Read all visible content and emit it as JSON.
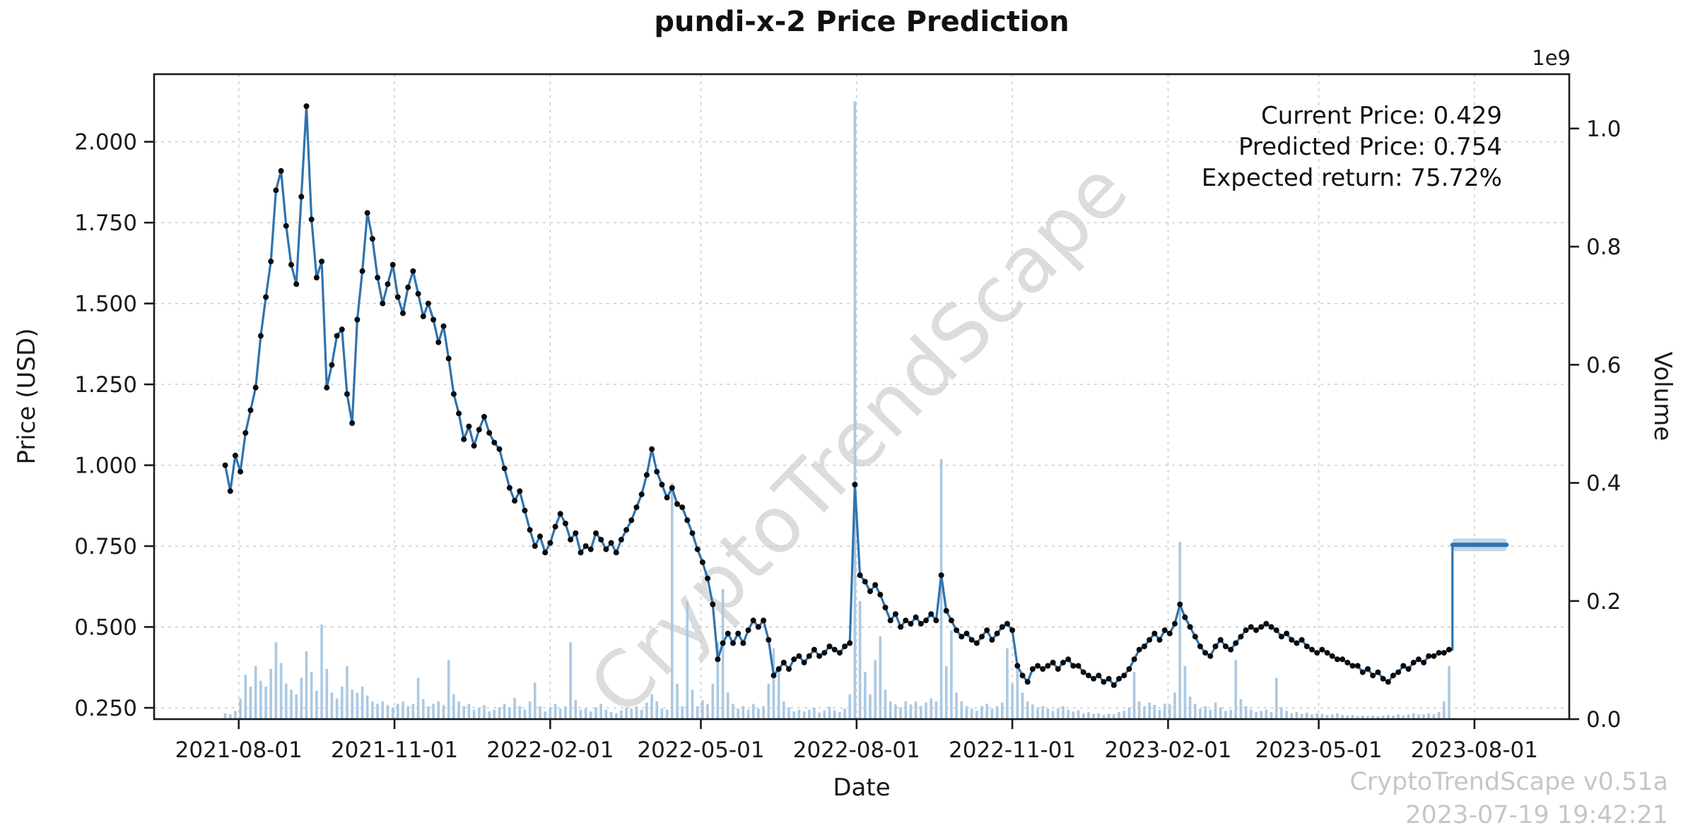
{
  "chart_data": {
    "type": "line",
    "title": "pundi-x-2 Price Prediction",
    "xlabel": "Date",
    "watermark": "CryptoTrendScape",
    "footer": {
      "line1": "CryptoTrendScape v0.51a",
      "line2": "2023-07-19 19:42:21"
    },
    "annotation": {
      "lines": [
        "Current Price: 0.429",
        "Predicted Price: 0.754",
        "Expected return: 75.72%"
      ]
    },
    "x_axis": {
      "start": "2021-06-12",
      "end": "2023-09-26",
      "ticks": [
        "2021-08-01",
        "2021-11-01",
        "2022-02-01",
        "2022-05-01",
        "2022-08-01",
        "2022-11-01",
        "2023-02-01",
        "2023-05-01",
        "2023-08-01"
      ]
    },
    "left_axis": {
      "label": "Price (USD)",
      "ticks": [
        "0.250",
        "0.500",
        "0.750",
        "1.000",
        "1.250",
        "1.500",
        "1.750",
        "2.000"
      ],
      "lim": [
        0.215,
        2.209
      ]
    },
    "right_axis": {
      "label": "Volume",
      "offset_label": "1e9",
      "ticks": [
        "0.0",
        "0.2",
        "0.4",
        "0.6",
        "0.8",
        "1.0"
      ],
      "lim": [
        0,
        1.092
      ]
    },
    "colors": {
      "line": "#2f73ad",
      "marker": "#0a0a0a",
      "volume": "#aac9e3",
      "band": "#aac9e3",
      "grid": "#c9c9c9",
      "axis": "#1a1a1a",
      "text": "#1a1a1a"
    },
    "legend": "none",
    "grid": "dashed",
    "series_columns": [
      "date",
      "price_usd",
      "volume_1e9"
    ],
    "series": [
      [
        "2021-07-24",
        1.0,
        0.01
      ],
      [
        "2021-07-27",
        0.92,
        0.008
      ],
      [
        "2021-07-30",
        1.03,
        0.014
      ],
      [
        "2021-08-02",
        0.98,
        0.035
      ],
      [
        "2021-08-05",
        1.1,
        0.075
      ],
      [
        "2021-08-08",
        1.17,
        0.055
      ],
      [
        "2021-08-11",
        1.24,
        0.09
      ],
      [
        "2021-08-14",
        1.4,
        0.065
      ],
      [
        "2021-08-17",
        1.52,
        0.055
      ],
      [
        "2021-08-20",
        1.63,
        0.085
      ],
      [
        "2021-08-23",
        1.85,
        0.13
      ],
      [
        "2021-08-26",
        1.91,
        0.095
      ],
      [
        "2021-08-29",
        1.74,
        0.06
      ],
      [
        "2021-09-01",
        1.62,
        0.05
      ],
      [
        "2021-09-04",
        1.56,
        0.042
      ],
      [
        "2021-09-07",
        1.83,
        0.07
      ],
      [
        "2021-09-10",
        2.11,
        0.115
      ],
      [
        "2021-09-13",
        1.76,
        0.08
      ],
      [
        "2021-09-16",
        1.58,
        0.048
      ],
      [
        "2021-09-19",
        1.63,
        0.16
      ],
      [
        "2021-09-22",
        1.24,
        0.085
      ],
      [
        "2021-09-25",
        1.31,
        0.045
      ],
      [
        "2021-09-28",
        1.4,
        0.035
      ],
      [
        "2021-10-01",
        1.42,
        0.055
      ],
      [
        "2021-10-04",
        1.22,
        0.09
      ],
      [
        "2021-10-07",
        1.13,
        0.05
      ],
      [
        "2021-10-10",
        1.45,
        0.045
      ],
      [
        "2021-10-13",
        1.6,
        0.055
      ],
      [
        "2021-10-16",
        1.78,
        0.04
      ],
      [
        "2021-10-19",
        1.7,
        0.03
      ],
      [
        "2021-10-22",
        1.58,
        0.026
      ],
      [
        "2021-10-25",
        1.5,
        0.03
      ],
      [
        "2021-10-28",
        1.56,
        0.024
      ],
      [
        "2021-10-31",
        1.62,
        0.02
      ],
      [
        "2021-11-03",
        1.52,
        0.026
      ],
      [
        "2021-11-06",
        1.47,
        0.03
      ],
      [
        "2021-11-09",
        1.55,
        0.022
      ],
      [
        "2021-11-12",
        1.6,
        0.026
      ],
      [
        "2021-11-15",
        1.53,
        0.07
      ],
      [
        "2021-11-18",
        1.46,
        0.034
      ],
      [
        "2021-11-21",
        1.5,
        0.022
      ],
      [
        "2021-11-24",
        1.45,
        0.026
      ],
      [
        "2021-11-27",
        1.38,
        0.03
      ],
      [
        "2021-11-30",
        1.43,
        0.024
      ],
      [
        "2021-12-03",
        1.33,
        0.1
      ],
      [
        "2021-12-06",
        1.22,
        0.042
      ],
      [
        "2021-12-09",
        1.16,
        0.03
      ],
      [
        "2021-12-12",
        1.08,
        0.022
      ],
      [
        "2021-12-15",
        1.12,
        0.026
      ],
      [
        "2021-12-18",
        1.06,
        0.016
      ],
      [
        "2021-12-21",
        1.11,
        0.02
      ],
      [
        "2021-12-24",
        1.15,
        0.024
      ],
      [
        "2021-12-27",
        1.1,
        0.013
      ],
      [
        "2021-12-30",
        1.07,
        0.016
      ],
      [
        "2022-01-02",
        1.05,
        0.02
      ],
      [
        "2022-01-05",
        0.99,
        0.026
      ],
      [
        "2022-01-08",
        0.93,
        0.02
      ],
      [
        "2022-01-11",
        0.89,
        0.036
      ],
      [
        "2022-01-14",
        0.92,
        0.022
      ],
      [
        "2022-01-17",
        0.86,
        0.016
      ],
      [
        "2022-01-20",
        0.8,
        0.03
      ],
      [
        "2022-01-23",
        0.75,
        0.062
      ],
      [
        "2022-01-26",
        0.78,
        0.022
      ],
      [
        "2022-01-29",
        0.73,
        0.013
      ],
      [
        "2022-02-01",
        0.76,
        0.02
      ],
      [
        "2022-02-04",
        0.81,
        0.026
      ],
      [
        "2022-02-07",
        0.85,
        0.018
      ],
      [
        "2022-02-10",
        0.82,
        0.022
      ],
      [
        "2022-02-13",
        0.77,
        0.13
      ],
      [
        "2022-02-16",
        0.79,
        0.032
      ],
      [
        "2022-02-19",
        0.73,
        0.016
      ],
      [
        "2022-02-22",
        0.75,
        0.018
      ],
      [
        "2022-02-25",
        0.74,
        0.013
      ],
      [
        "2022-02-28",
        0.79,
        0.02
      ],
      [
        "2022-03-03",
        0.77,
        0.026
      ],
      [
        "2022-03-06",
        0.74,
        0.016
      ],
      [
        "2022-03-09",
        0.76,
        0.012
      ],
      [
        "2022-03-12",
        0.73,
        0.01
      ],
      [
        "2022-03-15",
        0.77,
        0.015
      ],
      [
        "2022-03-18",
        0.8,
        0.02
      ],
      [
        "2022-03-21",
        0.83,
        0.018
      ],
      [
        "2022-03-24",
        0.87,
        0.022
      ],
      [
        "2022-03-27",
        0.91,
        0.016
      ],
      [
        "2022-03-30",
        0.97,
        0.028
      ],
      [
        "2022-04-02",
        1.05,
        0.042
      ],
      [
        "2022-04-05",
        0.98,
        0.03
      ],
      [
        "2022-04-08",
        0.94,
        0.018
      ],
      [
        "2022-04-11",
        0.9,
        0.016
      ],
      [
        "2022-04-14",
        0.93,
        0.4
      ],
      [
        "2022-04-17",
        0.88,
        0.06
      ],
      [
        "2022-04-20",
        0.87,
        0.022
      ],
      [
        "2022-04-23",
        0.83,
        0.2
      ],
      [
        "2022-04-26",
        0.79,
        0.05
      ],
      [
        "2022-04-29",
        0.74,
        0.022
      ],
      [
        "2022-05-02",
        0.7,
        0.032
      ],
      [
        "2022-05-05",
        0.65,
        0.026
      ],
      [
        "2022-05-08",
        0.57,
        0.06
      ],
      [
        "2022-05-11",
        0.4,
        0.13
      ],
      [
        "2022-05-14",
        0.45,
        0.22
      ],
      [
        "2022-05-17",
        0.48,
        0.045
      ],
      [
        "2022-05-20",
        0.45,
        0.026
      ],
      [
        "2022-05-23",
        0.48,
        0.018
      ],
      [
        "2022-05-26",
        0.45,
        0.022
      ],
      [
        "2022-05-29",
        0.49,
        0.016
      ],
      [
        "2022-06-01",
        0.52,
        0.026
      ],
      [
        "2022-06-04",
        0.5,
        0.018
      ],
      [
        "2022-06-07",
        0.52,
        0.022
      ],
      [
        "2022-06-10",
        0.46,
        0.06
      ],
      [
        "2022-06-13",
        0.35,
        0.12
      ],
      [
        "2022-06-16",
        0.37,
        0.09
      ],
      [
        "2022-06-19",
        0.39,
        0.03
      ],
      [
        "2022-06-22",
        0.37,
        0.02
      ],
      [
        "2022-06-25",
        0.4,
        0.013
      ],
      [
        "2022-06-28",
        0.41,
        0.016
      ],
      [
        "2022-07-01",
        0.39,
        0.013
      ],
      [
        "2022-07-04",
        0.41,
        0.016
      ],
      [
        "2022-07-07",
        0.43,
        0.019
      ],
      [
        "2022-07-10",
        0.41,
        0.011
      ],
      [
        "2022-07-13",
        0.42,
        0.015
      ],
      [
        "2022-07-16",
        0.44,
        0.021
      ],
      [
        "2022-07-19",
        0.43,
        0.015
      ],
      [
        "2022-07-22",
        0.42,
        0.012
      ],
      [
        "2022-07-25",
        0.44,
        0.018
      ],
      [
        "2022-07-28",
        0.45,
        0.042
      ],
      [
        "2022-07-31",
        0.94,
        1.046
      ],
      [
        "2022-08-03",
        0.66,
        0.2
      ],
      [
        "2022-08-06",
        0.64,
        0.08
      ],
      [
        "2022-08-09",
        0.61,
        0.042
      ],
      [
        "2022-08-12",
        0.63,
        0.1
      ],
      [
        "2022-08-15",
        0.6,
        0.14
      ],
      [
        "2022-08-18",
        0.56,
        0.05
      ],
      [
        "2022-08-21",
        0.52,
        0.03
      ],
      [
        "2022-08-24",
        0.54,
        0.025
      ],
      [
        "2022-08-27",
        0.5,
        0.02
      ],
      [
        "2022-08-30",
        0.52,
        0.03
      ],
      [
        "2022-09-02",
        0.51,
        0.025
      ],
      [
        "2022-09-05",
        0.53,
        0.03
      ],
      [
        "2022-09-08",
        0.51,
        0.022
      ],
      [
        "2022-09-11",
        0.52,
        0.028
      ],
      [
        "2022-09-14",
        0.54,
        0.035
      ],
      [
        "2022-09-17",
        0.52,
        0.03
      ],
      [
        "2022-09-20",
        0.66,
        0.44
      ],
      [
        "2022-09-23",
        0.55,
        0.09
      ],
      [
        "2022-09-26",
        0.52,
        0.15
      ],
      [
        "2022-09-29",
        0.49,
        0.045
      ],
      [
        "2022-10-02",
        0.47,
        0.03
      ],
      [
        "2022-10-05",
        0.48,
        0.022
      ],
      [
        "2022-10-08",
        0.46,
        0.018
      ],
      [
        "2022-10-11",
        0.45,
        0.014
      ],
      [
        "2022-10-14",
        0.47,
        0.022
      ],
      [
        "2022-10-17",
        0.49,
        0.026
      ],
      [
        "2022-10-20",
        0.46,
        0.018
      ],
      [
        "2022-10-23",
        0.48,
        0.022
      ],
      [
        "2022-10-26",
        0.5,
        0.028
      ],
      [
        "2022-10-29",
        0.51,
        0.12
      ],
      [
        "2022-11-01",
        0.49,
        0.06
      ],
      [
        "2022-11-04",
        0.38,
        0.09
      ],
      [
        "2022-11-07",
        0.35,
        0.045
      ],
      [
        "2022-11-10",
        0.33,
        0.03
      ],
      [
        "2022-11-13",
        0.37,
        0.025
      ],
      [
        "2022-11-16",
        0.38,
        0.02
      ],
      [
        "2022-11-19",
        0.37,
        0.022
      ],
      [
        "2022-11-22",
        0.38,
        0.018
      ],
      [
        "2022-11-25",
        0.39,
        0.014
      ],
      [
        "2022-11-28",
        0.37,
        0.018
      ],
      [
        "2022-12-01",
        0.39,
        0.022
      ],
      [
        "2022-12-04",
        0.4,
        0.016
      ],
      [
        "2022-12-07",
        0.38,
        0.013
      ],
      [
        "2022-12-10",
        0.38,
        0.015
      ],
      [
        "2022-12-13",
        0.36,
        0.01
      ],
      [
        "2022-12-16",
        0.35,
        0.012
      ],
      [
        "2022-12-19",
        0.34,
        0.009
      ],
      [
        "2022-12-22",
        0.35,
        0.01
      ],
      [
        "2022-12-25",
        0.33,
        0.007
      ],
      [
        "2022-12-28",
        0.34,
        0.009
      ],
      [
        "2022-12-31",
        0.32,
        0.008
      ],
      [
        "2023-01-03",
        0.34,
        0.012
      ],
      [
        "2023-01-06",
        0.35,
        0.014
      ],
      [
        "2023-01-09",
        0.37,
        0.02
      ],
      [
        "2023-01-12",
        0.4,
        0.08
      ],
      [
        "2023-01-15",
        0.43,
        0.03
      ],
      [
        "2023-01-18",
        0.44,
        0.022
      ],
      [
        "2023-01-21",
        0.46,
        0.028
      ],
      [
        "2023-01-24",
        0.48,
        0.024
      ],
      [
        "2023-01-27",
        0.46,
        0.016
      ],
      [
        "2023-01-30",
        0.49,
        0.026
      ],
      [
        "2023-02-02",
        0.48,
        0.025
      ],
      [
        "2023-02-05",
        0.51,
        0.045
      ],
      [
        "2023-02-08",
        0.57,
        0.3
      ],
      [
        "2023-02-11",
        0.53,
        0.09
      ],
      [
        "2023-02-14",
        0.5,
        0.038
      ],
      [
        "2023-02-17",
        0.47,
        0.026
      ],
      [
        "2023-02-20",
        0.44,
        0.018
      ],
      [
        "2023-02-23",
        0.42,
        0.022
      ],
      [
        "2023-02-26",
        0.41,
        0.016
      ],
      [
        "2023-03-01",
        0.44,
        0.028
      ],
      [
        "2023-03-04",
        0.46,
        0.02
      ],
      [
        "2023-03-07",
        0.44,
        0.014
      ],
      [
        "2023-03-10",
        0.43,
        0.016
      ],
      [
        "2023-03-13",
        0.45,
        0.1
      ],
      [
        "2023-03-16",
        0.47,
        0.034
      ],
      [
        "2023-03-19",
        0.49,
        0.022
      ],
      [
        "2023-03-22",
        0.5,
        0.016
      ],
      [
        "2023-03-25",
        0.49,
        0.012
      ],
      [
        "2023-03-28",
        0.5,
        0.014
      ],
      [
        "2023-03-31",
        0.51,
        0.016
      ],
      [
        "2023-04-03",
        0.5,
        0.012
      ],
      [
        "2023-04-06",
        0.49,
        0.07
      ],
      [
        "2023-04-09",
        0.47,
        0.02
      ],
      [
        "2023-04-12",
        0.48,
        0.014
      ],
      [
        "2023-04-15",
        0.46,
        0.01
      ],
      [
        "2023-04-18",
        0.45,
        0.012
      ],
      [
        "2023-04-21",
        0.46,
        0.009
      ],
      [
        "2023-04-24",
        0.44,
        0.011
      ],
      [
        "2023-04-27",
        0.43,
        0.008
      ],
      [
        "2023-04-30",
        0.42,
        0.01
      ],
      [
        "2023-05-03",
        0.43,
        0.009
      ],
      [
        "2023-05-06",
        0.42,
        0.007
      ],
      [
        "2023-05-09",
        0.41,
        0.008
      ],
      [
        "2023-05-12",
        0.4,
        0.01
      ],
      [
        "2023-05-15",
        0.4,
        0.007
      ],
      [
        "2023-05-18",
        0.39,
        0.006
      ],
      [
        "2023-05-21",
        0.38,
        0.007
      ],
      [
        "2023-05-24",
        0.38,
        0.005
      ],
      [
        "2023-05-27",
        0.36,
        0.006
      ],
      [
        "2023-05-30",
        0.37,
        0.005
      ],
      [
        "2023-06-02",
        0.35,
        0.006
      ],
      [
        "2023-06-05",
        0.36,
        0.005
      ],
      [
        "2023-06-08",
        0.34,
        0.006
      ],
      [
        "2023-06-11",
        0.33,
        0.007
      ],
      [
        "2023-06-14",
        0.35,
        0.006
      ],
      [
        "2023-06-17",
        0.36,
        0.008
      ],
      [
        "2023-06-20",
        0.38,
        0.006
      ],
      [
        "2023-06-23",
        0.37,
        0.008
      ],
      [
        "2023-06-26",
        0.39,
        0.01
      ],
      [
        "2023-06-29",
        0.4,
        0.008
      ],
      [
        "2023-07-02",
        0.39,
        0.008
      ],
      [
        "2023-07-05",
        0.41,
        0.01
      ],
      [
        "2023-07-08",
        0.41,
        0.008
      ],
      [
        "2023-07-11",
        0.42,
        0.012
      ],
      [
        "2023-07-14",
        0.42,
        0.03
      ],
      [
        "2023-07-17",
        0.43,
        0.09
      ]
    ],
    "prediction": {
      "start": "2023-07-19",
      "end": "2023-08-20",
      "value": 0.754
    }
  }
}
